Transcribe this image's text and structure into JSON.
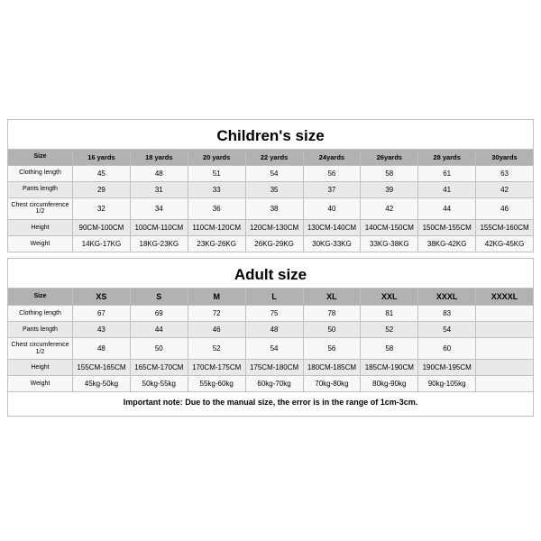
{
  "children": {
    "title": "Children's size",
    "headers": [
      "Size",
      "16 yards",
      "18 yards",
      "20 yards",
      "22 yards",
      "24yards",
      "26yards",
      "28 yards",
      "30yards"
    ],
    "rows": [
      {
        "label": "Clothing length",
        "cells": [
          "45",
          "48",
          "51",
          "54",
          "56",
          "58",
          "61",
          "63"
        ]
      },
      {
        "label": "Pants length",
        "cells": [
          "29",
          "31",
          "33",
          "35",
          "37",
          "39",
          "41",
          "42"
        ]
      },
      {
        "label": "Chest circumference 1/2",
        "cells": [
          "32",
          "34",
          "36",
          "38",
          "40",
          "42",
          "44",
          "46"
        ]
      },
      {
        "label": "Height",
        "cells": [
          "90CM-100CM",
          "100CM-110CM",
          "110CM-120CM",
          "120CM-130CM",
          "130CM-140CM",
          "140CM-150CM",
          "150CM-155CM",
          "155CM-160CM"
        ]
      },
      {
        "label": "Weight",
        "cells": [
          "14KG-17KG",
          "18KG-23KG",
          "23KG-26KG",
          "26KG-29KG",
          "30KG-33KG",
          "33KG-38KG",
          "38KG-42KG",
          "42KG-45KG"
        ]
      }
    ]
  },
  "adult": {
    "title": "Adult size",
    "headers": [
      "Size",
      "XS",
      "S",
      "M",
      "L",
      "XL",
      "XXL",
      "XXXL",
      "XXXXL"
    ],
    "rows": [
      {
        "label": "Clothing length",
        "cells": [
          "67",
          "69",
          "72",
          "75",
          "78",
          "81",
          "83",
          ""
        ]
      },
      {
        "label": "Pants length",
        "cells": [
          "43",
          "44",
          "46",
          "48",
          "50",
          "52",
          "54",
          ""
        ]
      },
      {
        "label": "Chest circumference 1/2",
        "cells": [
          "48",
          "50",
          "52",
          "54",
          "56",
          "58",
          "60",
          ""
        ]
      },
      {
        "label": "Height",
        "cells": [
          "155CM-165CM",
          "165CM-170CM",
          "170CM-175CM",
          "175CM-180CM",
          "180CM-185CM",
          "185CM-190CM",
          "190CM-195CM",
          ""
        ]
      },
      {
        "label": "Weight",
        "cells": [
          "45kg-50kg",
          "50kg-55kg",
          "55kg-60kg",
          "60kg-70kg",
          "70kg-80kg",
          "80kg-90kg",
          "90kg-105kg",
          ""
        ]
      }
    ]
  },
  "footnote": "Important note: Due to the manual size, the error is in the range of 1cm-3cm.",
  "style": {
    "header_bg": "#b1b2b4",
    "row_odd_bg": "#f8f8f8",
    "row_even_bg": "#e9e9ea",
    "border_color": "#bfc0c2",
    "title_fontsize": 17,
    "cell_fontsize": 8,
    "footnote_fontsize": 9
  }
}
